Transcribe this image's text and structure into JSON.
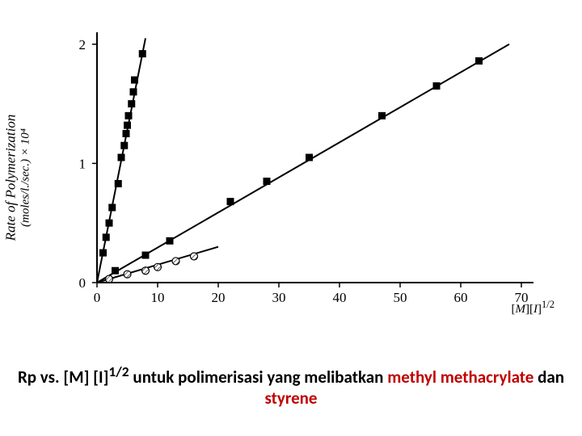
{
  "chart": {
    "type": "scatter",
    "background_color": "#ffffff",
    "axis_color": "#000000",
    "axis_width": 2,
    "tick_len": 6,
    "tick_fontsize": 17,
    "x": {
      "min": 0,
      "max": 72,
      "ticks": [
        0,
        10,
        20,
        30,
        40,
        50,
        60,
        70
      ]
    },
    "y": {
      "min": 0,
      "max": 2.1,
      "ticks": [
        0,
        1,
        2
      ]
    },
    "ylabel_line1": "Rate of Polymerization",
    "ylabel_line2": "(moles/l./sec.) × 10⁴",
    "xlabel_html": "[<span class='m'>M</span>][<span class='m'>I</span>]<sup>1/2</sup>",
    "ylabel_fontsize": 17,
    "xlabel_fontsize": 15,
    "marker_size": 9,
    "line_width": 2,
    "series": [
      {
        "name": "methyl-methacrylate",
        "marker": "square-solid",
        "color": "#000000",
        "line": {
          "from": [
            0,
            0
          ],
          "to": [
            8,
            2.05
          ]
        },
        "points": [
          [
            1.0,
            0.25
          ],
          [
            1.5,
            0.38
          ],
          [
            2.0,
            0.5
          ],
          [
            2.5,
            0.63
          ],
          [
            3.5,
            0.83
          ],
          [
            4.0,
            1.05
          ],
          [
            4.5,
            1.15
          ],
          [
            4.8,
            1.25
          ],
          [
            5.0,
            1.32
          ],
          [
            5.2,
            1.4
          ],
          [
            5.7,
            1.5
          ],
          [
            6.0,
            1.6
          ],
          [
            6.2,
            1.7
          ],
          [
            7.5,
            1.92
          ]
        ]
      },
      {
        "name": "styrene",
        "marker": "square-solid",
        "color": "#000000",
        "line": {
          "from": [
            0,
            0
          ],
          "to": [
            68,
            2.0
          ]
        },
        "points": [
          [
            3,
            0.1
          ],
          [
            8,
            0.23
          ],
          [
            12,
            0.35
          ],
          [
            22,
            0.68
          ],
          [
            28,
            0.85
          ],
          [
            35,
            1.05
          ],
          [
            47,
            1.4
          ],
          [
            56,
            1.65
          ],
          [
            63,
            1.86
          ]
        ]
      },
      {
        "name": "series-c",
        "marker": "circle-hatched",
        "color": "#000000",
        "line": {
          "from": [
            0,
            0
          ],
          "to": [
            20,
            0.3
          ]
        },
        "points": [
          [
            2,
            0.03
          ],
          [
            5,
            0.07
          ],
          [
            8,
            0.1
          ],
          [
            10,
            0.13
          ],
          [
            13,
            0.18
          ],
          [
            16,
            0.22
          ]
        ]
      }
    ]
  },
  "caption": {
    "text_black": "Rp vs. [M] [I]",
    "sup": "1/2",
    "text_black2": " untuk polimerisasi yang melibatkan ",
    "red1": "methyl methacrylate",
    "mid": " dan ",
    "red2": "styrene",
    "fontsize": 21,
    "red_color": "#c00000"
  }
}
